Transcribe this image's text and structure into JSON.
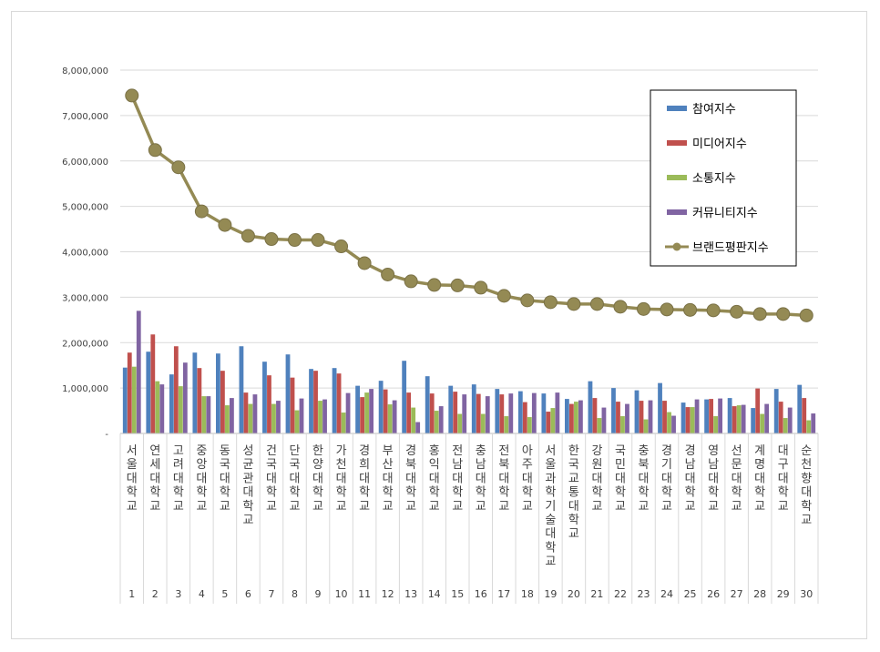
{
  "chart_data": {
    "type": "bar",
    "title": "",
    "xlabel": "",
    "ylabel": "",
    "ylim": [
      0,
      8000000
    ],
    "yticks": [
      "-",
      "1,000,000",
      "2,000,000",
      "3,000,000",
      "4,000,000",
      "5,000,000",
      "6,000,000",
      "7,000,000",
      "8,000,000"
    ],
    "grid": true,
    "legend_position": "top-right",
    "ranks": [
      "1",
      "2",
      "3",
      "4",
      "5",
      "6",
      "7",
      "8",
      "9",
      "10",
      "11",
      "12",
      "13",
      "14",
      "15",
      "16",
      "17",
      "18",
      "19",
      "20",
      "21",
      "22",
      "23",
      "24",
      "25",
      "26",
      "27",
      "28",
      "29",
      "30"
    ],
    "categories": [
      "서울대학교",
      "연세대학교",
      "고려대학교",
      "중앙대학교",
      "동국대학교",
      "성균관대학교",
      "건국대학교",
      "단국대학교",
      "한양대학교",
      "가천대학교",
      "경희대학교",
      "부산대학교",
      "경북대학교",
      "홍익대학교",
      "전남대학교",
      "충남대학교",
      "전북대학교",
      "아주대학교",
      "서울과학기술대학교",
      "한국교통대학교",
      "강원대학교",
      "국민대학교",
      "충북대학교",
      "경기대학교",
      "경남대학교",
      "영남대학교",
      "선문대학교",
      "계명대학교",
      "대구대학교",
      "순천향대학교"
    ],
    "series": [
      {
        "name": "참여지수",
        "kind": "bar",
        "color": "#4f81bd",
        "values": [
          1450000,
          1800000,
          1300000,
          1780000,
          1760000,
          1920000,
          1580000,
          1740000,
          1420000,
          1440000,
          1050000,
          1160000,
          1600000,
          1260000,
          1050000,
          1080000,
          980000,
          930000,
          880000,
          760000,
          1150000,
          1000000,
          950000,
          1110000,
          680000,
          750000,
          780000,
          560000,
          980000,
          1070000
        ]
      },
      {
        "name": "미디어지수",
        "kind": "bar",
        "color": "#c0504d",
        "values": [
          1780000,
          2180000,
          1920000,
          1440000,
          1380000,
          900000,
          1280000,
          1230000,
          1380000,
          1320000,
          800000,
          970000,
          900000,
          880000,
          920000,
          870000,
          860000,
          690000,
          480000,
          650000,
          780000,
          700000,
          720000,
          720000,
          580000,
          760000,
          600000,
          990000,
          700000,
          780000
        ]
      },
      {
        "name": "소통지수",
        "kind": "bar",
        "color": "#9bbb59",
        "values": [
          1470000,
          1150000,
          1040000,
          820000,
          620000,
          650000,
          650000,
          510000,
          720000,
          460000,
          900000,
          640000,
          570000,
          500000,
          430000,
          430000,
          380000,
          360000,
          560000,
          700000,
          340000,
          380000,
          310000,
          470000,
          580000,
          380000,
          620000,
          430000,
          340000,
          290000
        ]
      },
      {
        "name": "커뮤니티지수",
        "kind": "bar",
        "color": "#8064a2",
        "values": [
          2700000,
          1080000,
          1560000,
          820000,
          780000,
          860000,
          720000,
          770000,
          750000,
          890000,
          980000,
          730000,
          250000,
          600000,
          860000,
          820000,
          880000,
          890000,
          900000,
          730000,
          570000,
          650000,
          730000,
          390000,
          750000,
          770000,
          630000,
          650000,
          570000,
          440000
        ]
      },
      {
        "name": "브랜드평판지수",
        "kind": "line",
        "color": "#948a54",
        "values": [
          7440000,
          6240000,
          5860000,
          4890000,
          4590000,
          4350000,
          4280000,
          4260000,
          4260000,
          4120000,
          3750000,
          3500000,
          3350000,
          3270000,
          3260000,
          3210000,
          3030000,
          2930000,
          2890000,
          2850000,
          2850000,
          2790000,
          2740000,
          2730000,
          2720000,
          2710000,
          2680000,
          2630000,
          2630000,
          2600000
        ]
      }
    ]
  }
}
